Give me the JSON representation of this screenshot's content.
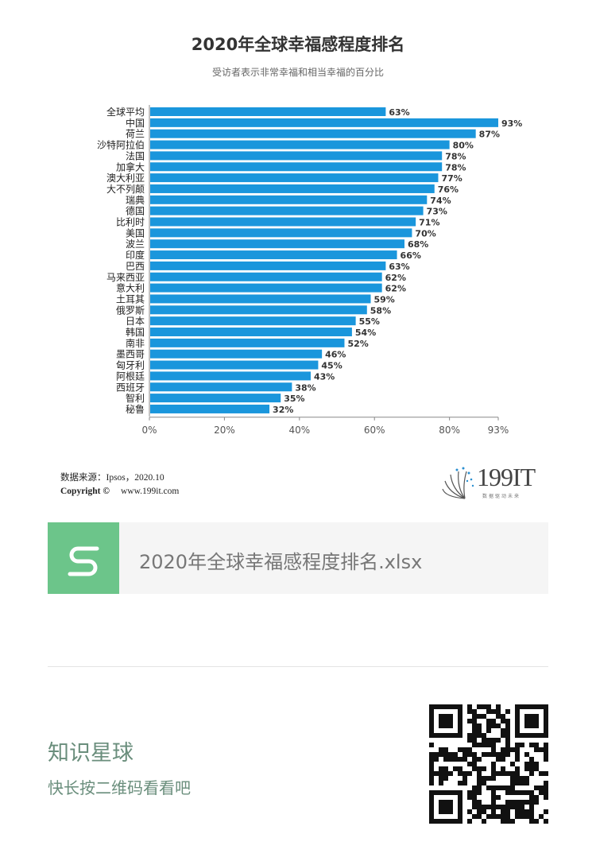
{
  "chart_data": {
    "type": "bar",
    "orientation": "horizontal",
    "title": "2020年全球幸福感程度排名",
    "subtitle": "受访者表示非常幸福和相当幸福的百分比",
    "categories": [
      "全球平均",
      "中国",
      "荷兰",
      "沙特阿拉伯",
      "法国",
      "加拿大",
      "澳大利亚",
      "大不列颠",
      "瑞典",
      "德国",
      "比利时",
      "美国",
      "波兰",
      "印度",
      "巴西",
      "马来西亚",
      "意大利",
      "土耳其",
      "俄罗斯",
      "日本",
      "韩国",
      "南非",
      "墨西哥",
      "匈牙利",
      "阿根廷",
      "西班牙",
      "智利",
      "秘鲁"
    ],
    "values": [
      63,
      93,
      87,
      80,
      78,
      78,
      77,
      76,
      74,
      73,
      71,
      70,
      68,
      66,
      63,
      62,
      62,
      59,
      58,
      55,
      54,
      52,
      46,
      45,
      43,
      38,
      35,
      32
    ],
    "value_labels": [
      "63%",
      "93%",
      "87%",
      "80%",
      "78%",
      "78%",
      "77%",
      "76%",
      "74%",
      "73%",
      "71%",
      "70%",
      "68%",
      "66%",
      "63%",
      "62%",
      "62%",
      "59%",
      "58%",
      "55%",
      "54%",
      "52%",
      "46%",
      "45%",
      "43%",
      "38%",
      "35%",
      "32%"
    ],
    "xticks": [
      0,
      20,
      40,
      60,
      80,
      93
    ],
    "xtick_labels": [
      "0%",
      "20%",
      "40%",
      "60%",
      "80%",
      "93%"
    ],
    "xlim": [
      0,
      93
    ],
    "bar_color": "#1a96dc"
  },
  "footer": {
    "source": "数据来源：Ipsos，2020.10",
    "copyright": "Copyright ©",
    "url": "www.199it.com",
    "logo": "199IT",
    "logo_tag": "数据驱动未来"
  },
  "file": {
    "name": "2020年全球幸福感程度排名.xlsx",
    "icon": "spreadsheet-s-icon"
  },
  "promo": {
    "title": "知识星球",
    "hint": "快长按二维码看看吧"
  }
}
